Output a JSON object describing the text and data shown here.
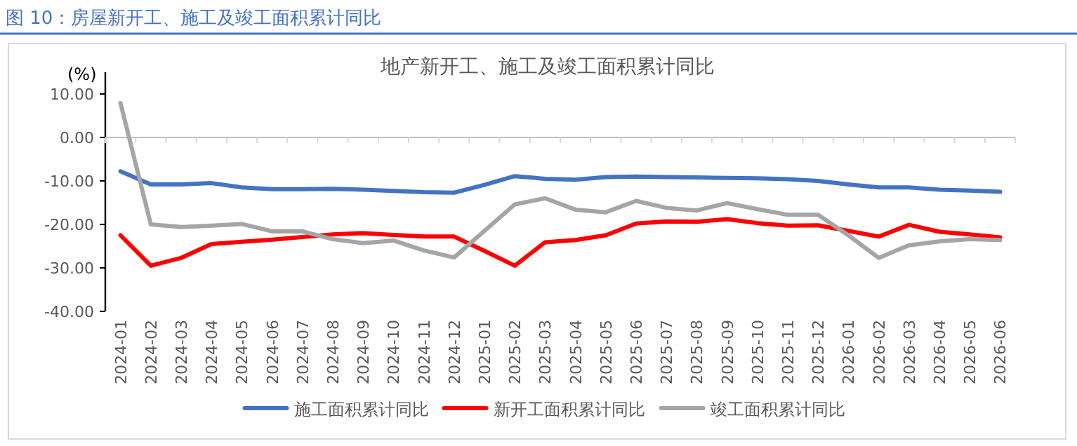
{
  "chart_data": {
    "type": "line",
    "title": "图 10：房屋新开工、施工及竣工面积累计同比",
    "subtitle": "地产新开工、施工及竣工面积累计同比",
    "ylabel": "(%)",
    "categories": [
      "2024-01",
      "2024-02",
      "2024-03",
      "2024-04",
      "2024-05",
      "2024-06",
      "2024-07",
      "2024-08",
      "2024-09",
      "2024-10",
      "2024-11",
      "2024-12",
      "2025-01",
      "2025-02",
      "2025-03",
      "2025-04",
      "2025-05",
      "2025-06",
      "2025-07",
      "2025-08",
      "2025-09",
      "2025-10",
      "2025-11",
      "2025-12",
      "2026-01",
      "2026-02",
      "2026-03",
      "2026-04",
      "2026-05",
      "2026-06"
    ],
    "ylim": [
      -40,
      15
    ],
    "yticks": [
      {
        "value": -40,
        "label": "-40.00"
      },
      {
        "value": -30,
        "label": "-30.00"
      },
      {
        "value": -20,
        "label": "-20.00"
      },
      {
        "value": -10,
        "label": "-10.00"
      },
      {
        "value": 0,
        "label": "0.00"
      },
      {
        "value": 10,
        "label": "10.00"
      }
    ],
    "legend": "bottom",
    "marker": "none",
    "line_style": "solid",
    "series": [
      {
        "name": "施工面积累计同比",
        "color": "#4472c4",
        "values": [
          -7.8,
          -10.8,
          -10.8,
          -10.5,
          -11.5,
          -11.9,
          -11.9,
          -11.8,
          -12.0,
          -12.3,
          -12.6,
          -12.7,
          -10.9,
          -8.9,
          -9.5,
          -9.7,
          -9.1,
          -9.0,
          -9.1,
          -9.2,
          -9.3,
          -9.4,
          -9.6,
          -10.0,
          -10.8,
          -11.5,
          -11.5,
          -12.0,
          -12.2,
          -12.5
        ]
      },
      {
        "name": "新开工面积累计同比",
        "color": "#ff0000",
        "values": [
          -22.5,
          -29.5,
          -27.7,
          -24.5,
          -24.0,
          -23.5,
          -22.9,
          -22.3,
          -22.0,
          -22.4,
          -22.8,
          -22.8,
          -26.1,
          -29.5,
          -24.1,
          -23.6,
          -22.5,
          -19.8,
          -19.3,
          -19.4,
          -18.8,
          -19.7,
          -20.3,
          -20.2,
          -21.5,
          -22.8,
          -20.1,
          -21.7,
          -22.3,
          -23.0
        ]
      },
      {
        "name": "竣工面积累计同比",
        "color": "#a5a5a5",
        "values": [
          7.9,
          -20.0,
          -20.6,
          -20.3,
          -19.9,
          -21.6,
          -21.6,
          -23.4,
          -24.3,
          -23.7,
          -26.0,
          -27.6,
          -21.5,
          -15.4,
          -14.0,
          -16.6,
          -17.2,
          -14.6,
          -16.2,
          -16.8,
          -15.1,
          -16.5,
          -17.8,
          -17.8,
          -22.5,
          -27.7,
          -24.8,
          -23.9,
          -23.4,
          -23.6
        ]
      }
    ]
  }
}
